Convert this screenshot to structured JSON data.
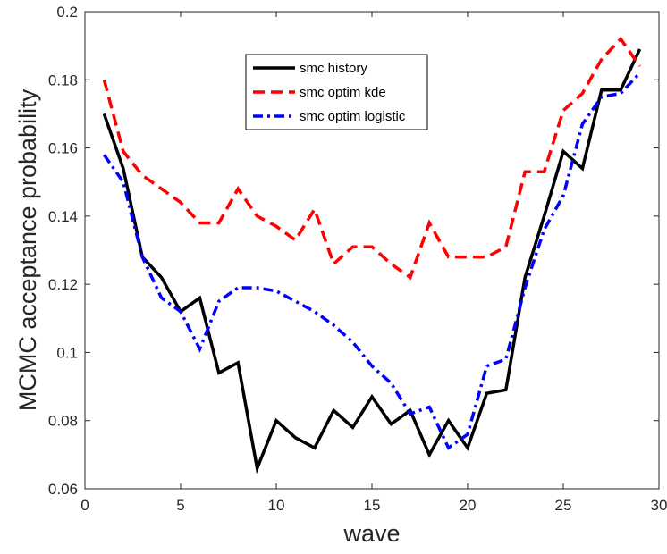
{
  "chart_data": {
    "type": "line",
    "title": "",
    "xlabel": "wave",
    "ylabel": "MCMC acceptance probability",
    "xlim": [
      0,
      30
    ],
    "ylim": [
      0.06,
      0.2
    ],
    "xticks": [
      0,
      5,
      10,
      15,
      20,
      25,
      30
    ],
    "xtick_labels": [
      "0",
      "5",
      "10",
      "15",
      "20",
      "25",
      "30"
    ],
    "yticks": [
      0.06,
      0.08,
      0.1,
      0.12,
      0.14,
      0.16,
      0.18,
      0.2
    ],
    "ytick_labels": [
      "0.06",
      "0.08",
      "0.1",
      "0.12",
      "0.14",
      "0.16",
      "0.18",
      "0.2"
    ],
    "grid": false,
    "legend_position": "top-center",
    "x": [
      1,
      2,
      3,
      4,
      5,
      6,
      7,
      8,
      9,
      10,
      11,
      12,
      13,
      14,
      15,
      16,
      17,
      18,
      19,
      20,
      21,
      22,
      23,
      24,
      25,
      26,
      27,
      28,
      29
    ],
    "series": [
      {
        "name": "smc history",
        "color": "#000000",
        "dash": "solid",
        "values": [
          0.17,
          0.154,
          0.128,
          0.122,
          0.112,
          0.116,
          0.094,
          0.097,
          0.066,
          0.08,
          0.075,
          0.072,
          0.083,
          0.078,
          0.087,
          0.079,
          0.083,
          0.07,
          0.08,
          0.072,
          0.088,
          0.089,
          0.122,
          0.14,
          0.159,
          0.154,
          0.177,
          0.177,
          0.189
        ]
      },
      {
        "name": "smc optim kde",
        "color": "#ff0000",
        "dash": "dashed",
        "values": [
          0.18,
          0.159,
          0.152,
          0.148,
          0.144,
          0.138,
          0.138,
          0.148,
          0.14,
          0.137,
          0.133,
          0.142,
          0.126,
          0.131,
          0.131,
          0.126,
          0.122,
          0.138,
          0.128,
          0.128,
          0.128,
          0.131,
          0.153,
          0.153,
          0.171,
          0.176,
          0.186,
          0.192,
          0.184
        ]
      },
      {
        "name": "smc optim logistic",
        "color": "#0000ff",
        "dash": "dashdot",
        "values": [
          0.158,
          0.15,
          0.128,
          0.116,
          0.112,
          0.101,
          0.115,
          0.119,
          0.119,
          0.118,
          0.115,
          0.112,
          0.108,
          0.103,
          0.096,
          0.091,
          0.082,
          0.084,
          0.072,
          0.076,
          0.096,
          0.098,
          0.119,
          0.136,
          0.146,
          0.167,
          0.175,
          0.176,
          0.182
        ]
      }
    ]
  }
}
